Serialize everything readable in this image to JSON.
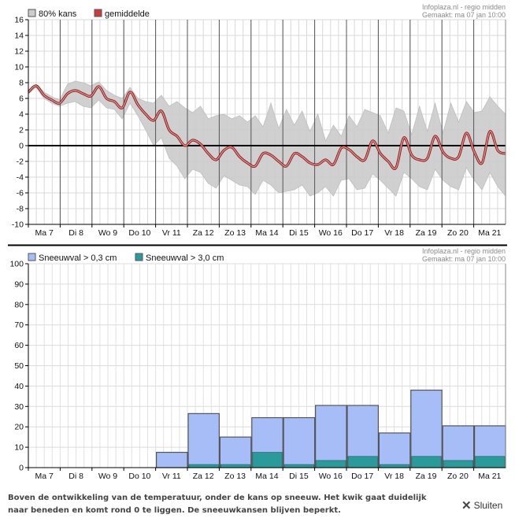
{
  "colors": {
    "band": "#cccccc",
    "mean": "#d03a3a",
    "snow_light": "#a6bdf7",
    "snow_heavy": "#2a9a9a",
    "grid": "#d8d8d8"
  },
  "close_label": "Sluiten",
  "footer_text": "Boven de ontwikkeling van de temperatuur, onder de kans op sneeuw. Het kwik gaat duidelijk naar beneden en komt rond 0 te liggen. De sneeuwkansen blijven beperkt.",
  "chart_data": [
    {
      "type": "area",
      "credit_line1": "Infoplaza.nl - regio midden",
      "credit_line2": "Gemaakt: ma 07 jan 10:00",
      "legend": [
        {
          "label": "80% kans",
          "color": "#cccccc"
        },
        {
          "label": "gemiddelde",
          "color": "#d03a3a"
        }
      ],
      "categories": [
        "Ma 7",
        "Di 8",
        "Wo 9",
        "Do 10",
        "Vr 11",
        "Za 12",
        "Zo 13",
        "Ma 14",
        "Di 15",
        "Wo 16",
        "Do 17",
        "Vr 18",
        "Za 19",
        "Zo 20",
        "Ma 21"
      ],
      "ylim": [
        -10,
        16
      ],
      "yticks": [
        16,
        14,
        12,
        10,
        8,
        6,
        4,
        2,
        0,
        -2,
        -4,
        -6,
        -8,
        -10
      ],
      "grid": true,
      "mean_series": [
        6.8,
        7.6,
        6.4,
        5.8,
        5.4,
        6.6,
        7.0,
        6.6,
        6.3,
        7.5,
        6.0,
        5.6,
        4.8,
        6.8,
        5.2,
        4.0,
        3.2,
        4.4,
        2.0,
        1.2,
        0.0,
        0.7,
        0.2,
        -1.0,
        -1.8,
        -0.6,
        -0.2,
        -1.4,
        -2.2,
        -2.6,
        -1.0,
        -1.2,
        -2.0,
        -2.6,
        -1.0,
        -1.4,
        -2.2,
        -2.4,
        -1.8,
        -2.4,
        -0.3,
        -0.5,
        -1.4,
        -1.8,
        0.6,
        -1.0,
        -2.0,
        -2.8,
        1.0,
        -1.2,
        -1.8,
        -1.6,
        1.2,
        -0.8,
        -1.6,
        -1.4,
        1.6,
        -0.8,
        -2.2,
        1.8,
        -0.6,
        -1.0
      ],
      "band_upper": [
        7.0,
        7.8,
        6.8,
        6.2,
        5.8,
        7.8,
        8.2,
        8.0,
        7.6,
        8.1,
        7.0,
        6.4,
        6.0,
        7.4,
        6.0,
        5.6,
        5.4,
        6.4,
        5.0,
        5.6,
        4.8,
        4.2,
        5.0,
        3.4,
        3.8,
        4.0,
        3.4,
        3.8,
        3.0,
        3.8,
        2.4,
        5.4,
        2.2,
        4.6,
        2.6,
        4.4,
        1.8,
        4.0,
        0.6,
        2.6,
        1.2,
        3.8,
        2.4,
        4.6,
        4.2,
        3.8,
        1.6,
        4.8,
        4.4,
        1.4,
        5.0,
        1.8,
        5.4,
        1.6,
        5.4,
        3.0,
        5.6,
        4.2,
        4.4,
        6.2,
        5.0,
        4.0
      ],
      "band_lower": [
        6.6,
        7.4,
        6.0,
        5.4,
        5.0,
        5.4,
        5.6,
        5.0,
        4.8,
        5.8,
        4.8,
        4.6,
        3.4,
        5.4,
        3.8,
        2.0,
        0.0,
        1.0,
        -1.6,
        -2.6,
        -4.2,
        -3.0,
        -3.4,
        -4.8,
        -5.4,
        -3.8,
        -4.4,
        -5.0,
        -5.2,
        -6.2,
        -4.4,
        -5.0,
        -6.0,
        -5.8,
        -5.6,
        -5.0,
        -6.4,
        -6.0,
        -5.2,
        -6.4,
        -4.4,
        -4.2,
        -5.6,
        -5.4,
        -3.6,
        -4.4,
        -5.4,
        -6.4,
        -3.4,
        -4.2,
        -5.2,
        -5.6,
        -3.0,
        -4.4,
        -5.2,
        -5.6,
        -2.8,
        -4.4,
        -5.6,
        -3.4,
        -5.2,
        -6.4
      ]
    },
    {
      "type": "bar",
      "credit_line1": "Infoplaza.nl - regio midden",
      "credit_line2": "Gemaakt: ma 07 jan 10:00",
      "categories": [
        "Ma 7",
        "Di 8",
        "Wo 9",
        "Do 10",
        "Vr 11",
        "Za 12",
        "Zo 13",
        "Ma 14",
        "Di 15",
        "Wo 16",
        "Do 17",
        "Vr 18",
        "Za 19",
        "Zo 20",
        "Ma 21"
      ],
      "ylim": [
        0,
        100
      ],
      "yticks": [
        100,
        90,
        80,
        70,
        60,
        50,
        40,
        30,
        20,
        10,
        0
      ],
      "grid": true,
      "series": [
        {
          "name": "Sneeuwval > 0,3 cm",
          "color": "#a6bdf7",
          "values": [
            0,
            0,
            0,
            0,
            7.5,
            26.5,
            15,
            24.5,
            24.5,
            30.5,
            30.5,
            17,
            38,
            20.5,
            20.5
          ]
        },
        {
          "name": "Sneeuwval > 3,0 cm",
          "color": "#2a9a9a",
          "values": [
            0,
            0,
            0,
            0,
            0,
            1.5,
            1.5,
            7.5,
            1.5,
            3.5,
            5.5,
            1.5,
            5.5,
            3.5,
            5.5
          ]
        }
      ]
    }
  ]
}
